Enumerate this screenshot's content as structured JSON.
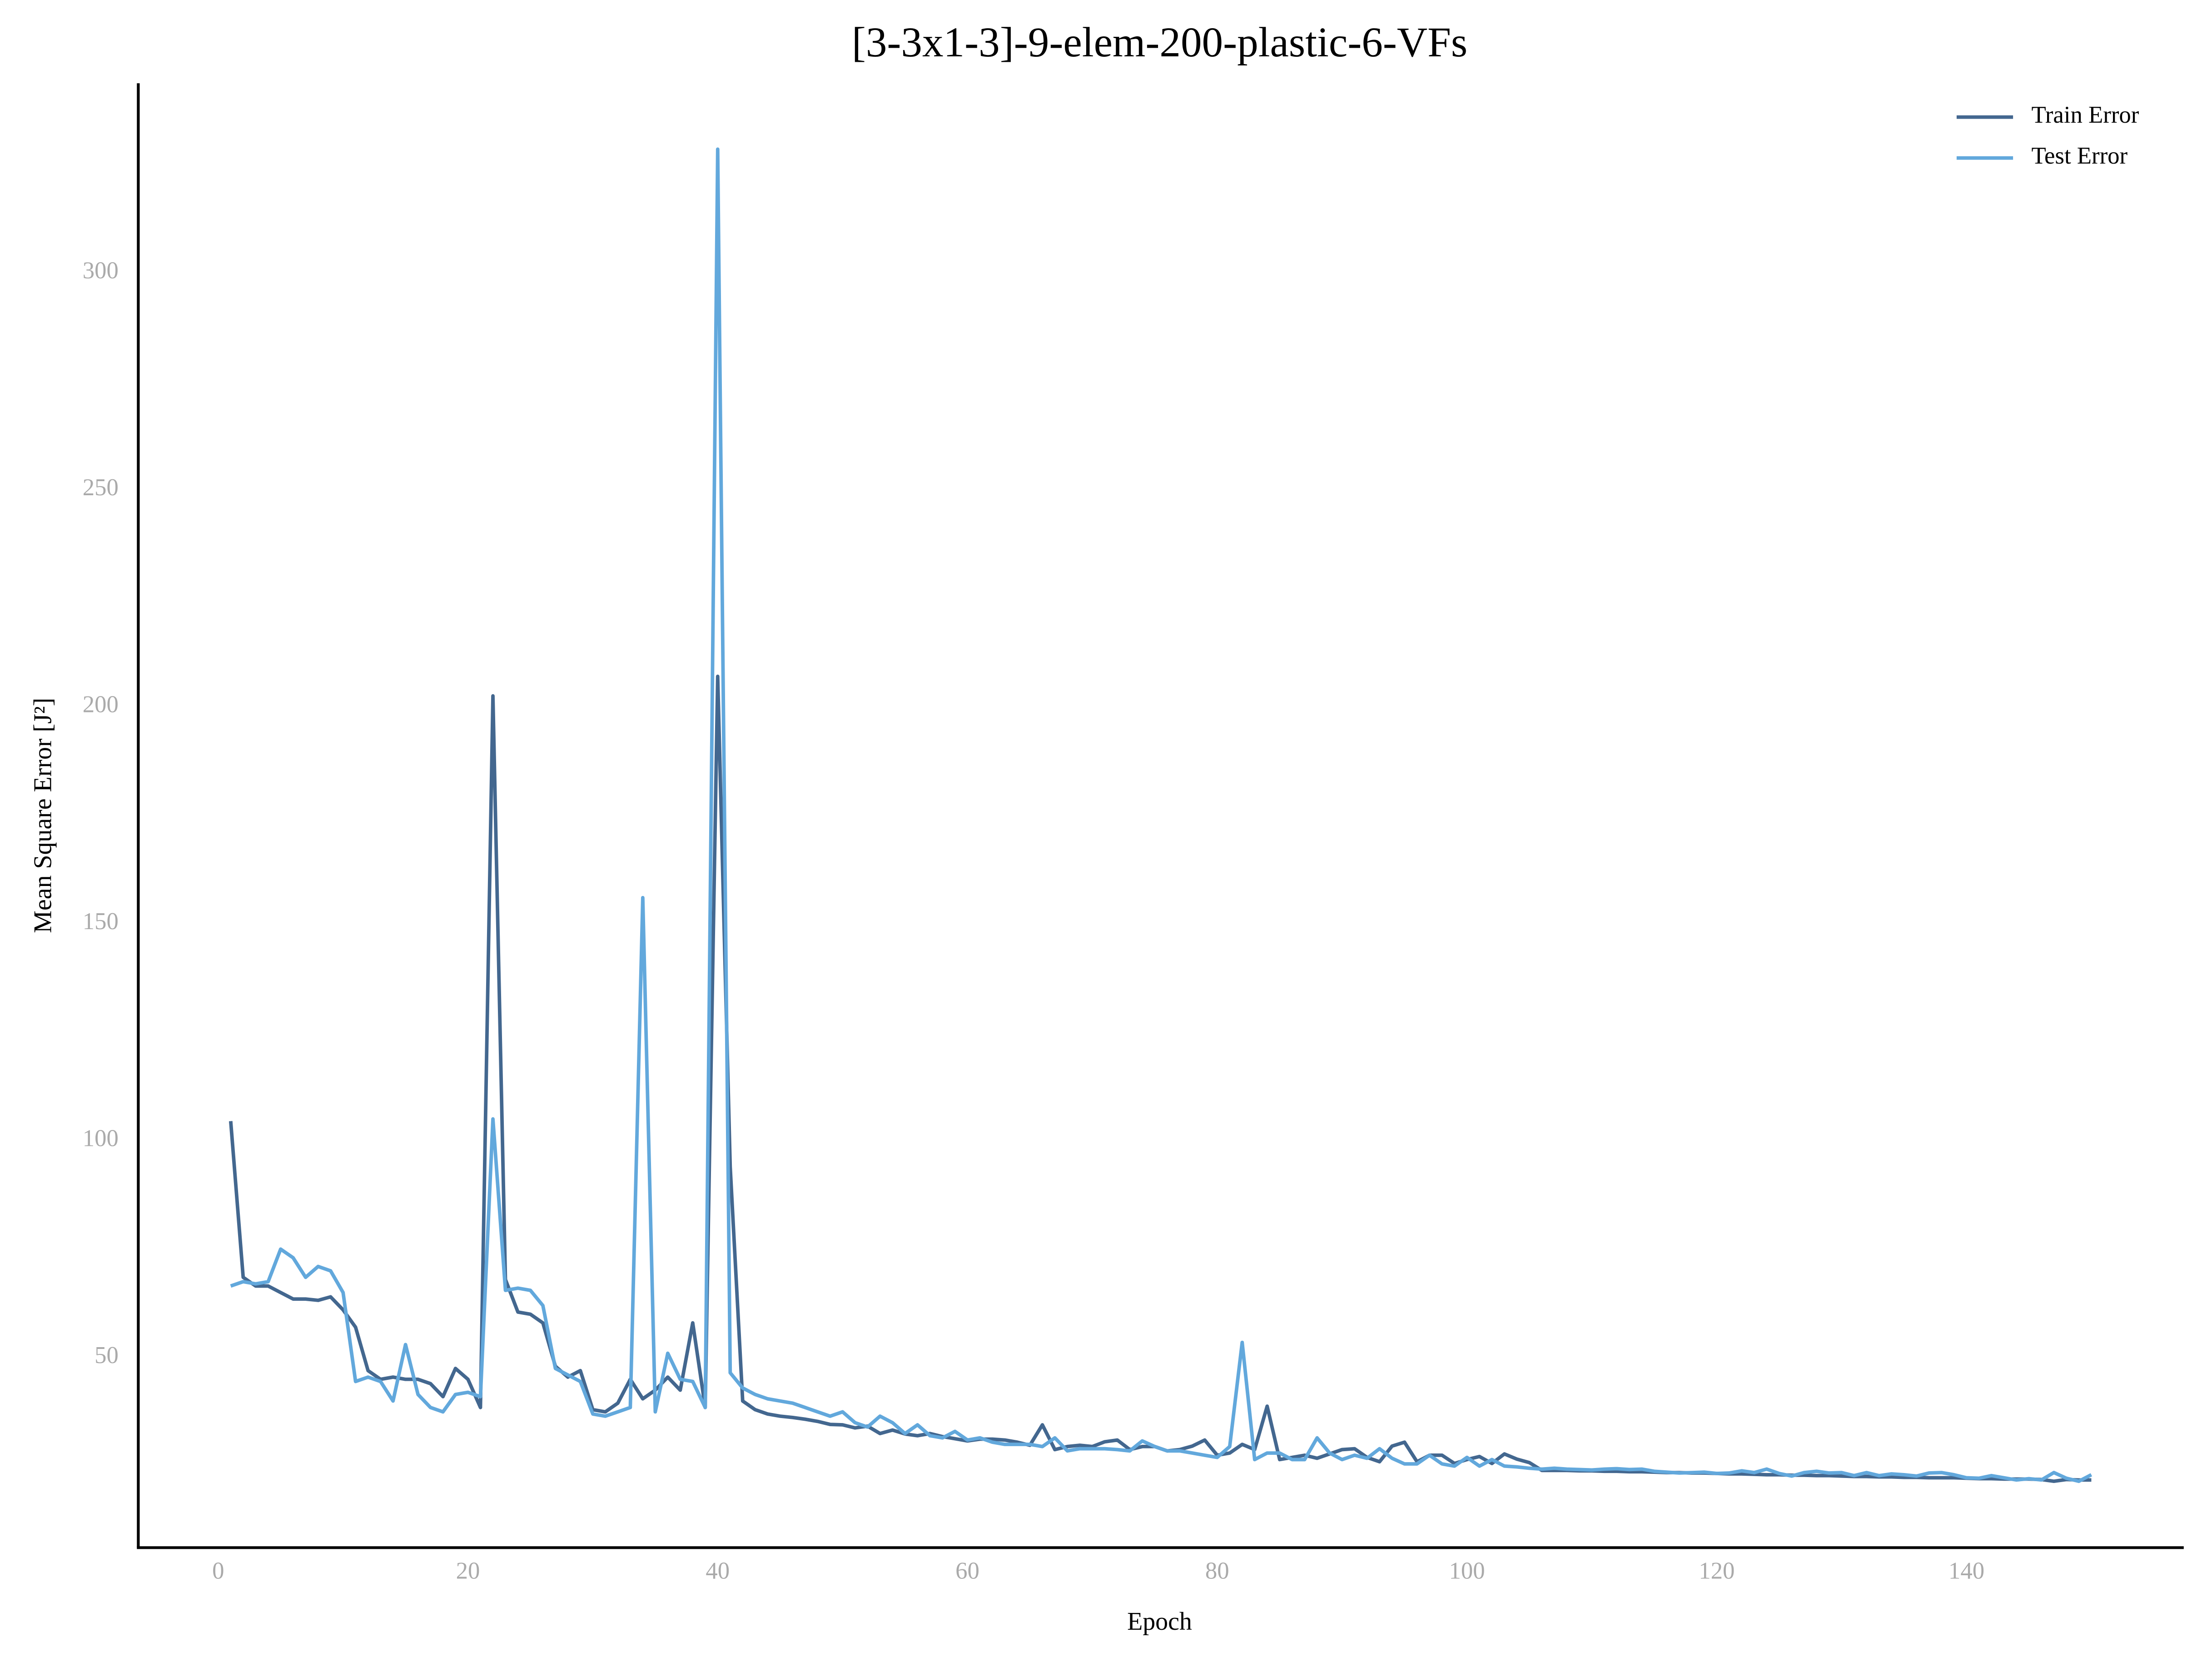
{
  "chart_data": {
    "type": "line",
    "title": "[3-3x1-3]-9-elem-200-plastic-6-VFs",
    "x_label": "Epoch",
    "y_label": "Mean Square Error [J²]",
    "x": [
      1,
      2,
      3,
      4,
      5,
      6,
      7,
      8,
      9,
      10,
      11,
      12,
      13,
      14,
      15,
      16,
      17,
      18,
      19,
      20,
      21,
      22,
      23,
      24,
      25,
      26,
      27,
      28,
      29,
      30,
      31,
      32,
      33,
      34,
      35,
      36,
      37,
      38,
      39,
      40,
      41,
      42,
      43,
      44,
      45,
      46,
      47,
      48,
      49,
      50,
      51,
      52,
      53,
      54,
      55,
      56,
      57,
      58,
      59,
      60,
      61,
      62,
      63,
      64,
      65,
      66,
      67,
      68,
      69,
      70,
      71,
      72,
      73,
      74,
      75,
      76,
      77,
      78,
      79,
      80,
      81,
      82,
      83,
      84,
      85,
      86,
      87,
      88,
      89,
      90,
      91,
      92,
      93,
      94,
      95,
      96,
      97,
      98,
      99,
      100,
      101,
      102,
      103,
      104,
      105,
      106,
      107,
      108,
      109,
      110,
      111,
      112,
      113,
      114,
      115,
      116,
      117,
      118,
      119,
      120,
      121,
      122,
      123,
      124,
      125,
      126,
      127,
      128,
      129,
      130,
      131,
      132,
      133,
      134,
      135,
      136,
      137,
      138,
      139,
      140,
      141,
      142,
      143,
      144,
      145,
      146,
      147,
      148,
      149,
      150
    ],
    "series": [
      {
        "name": "Train Error",
        "color": "#43678f",
        "values": [
          104.5,
          68.5,
          66.5,
          66.5,
          65,
          63.5,
          63.5,
          63.2,
          64,
          61,
          57,
          47,
          45,
          45.5,
          45,
          45,
          44,
          41,
          47.5,
          45,
          38.5,
          202.5,
          68,
          60.5,
          60,
          58,
          48,
          45.5,
          47,
          38,
          37.5,
          39.5,
          45,
          40.5,
          42.5,
          45.5,
          42.5,
          58,
          38.5,
          207,
          94,
          40,
          38,
          37,
          36.5,
          36.2,
          35.8,
          35.3,
          34.6,
          34.5,
          33.8,
          34.2,
          32.5,
          33.3,
          32.4,
          32,
          32.5,
          31.8,
          31.3,
          30.8,
          31.2,
          31.2,
          31,
          30.5,
          29.8,
          34.5,
          28.8,
          29.5,
          29.8,
          29.5,
          30.6,
          31,
          28.8,
          29.5,
          29.5,
          28.5,
          28.8,
          29.6,
          31,
          27.5,
          28,
          30,
          28.8,
          38.8,
          26.5,
          27,
          27.5,
          26.8,
          27.8,
          28.8,
          29,
          27,
          26,
          29.6,
          30.5,
          26,
          27.5,
          27.5,
          25.6,
          26.5,
          27.2,
          25.6,
          27.8,
          26.6,
          25.8,
          24,
          24,
          24,
          23.9,
          23.9,
          23.8,
          23.8,
          23.7,
          23.7,
          23.6,
          23.5,
          23.5,
          23.4,
          23.4,
          23.3,
          23.2,
          23.2,
          23.1,
          23,
          23,
          22.9,
          22.9,
          22.8,
          22.8,
          22.7,
          22.6,
          22.6,
          22.5,
          22.5,
          22.4,
          22.4,
          22.3,
          22.3,
          22.3,
          22.2,
          22.1,
          22.1,
          22,
          22,
          22,
          21.9,
          21.5,
          21.9,
          21.8,
          21.8
        ]
      },
      {
        "name": "Test Error",
        "color": "#62a8dc",
        "values": [
          66.5,
          67.5,
          67,
          67.5,
          75,
          73,
          68.5,
          71,
          70,
          65,
          44.5,
          45.5,
          44.5,
          40,
          53,
          41.5,
          38.5,
          37.5,
          41.5,
          42,
          41,
          105,
          65.5,
          66,
          65.5,
          62,
          47.5,
          46,
          44.5,
          37,
          36.5,
          37.5,
          38.5,
          156,
          37.5,
          51,
          45,
          44.5,
          38.5,
          328.5,
          46.5,
          43,
          41.5,
          40.5,
          40,
          39.5,
          38.5,
          37.5,
          36.5,
          37.5,
          35,
          34,
          36.5,
          35,
          32.5,
          34.5,
          32,
          31.5,
          33,
          31,
          31.5,
          30.5,
          30,
          30,
          30,
          29.5,
          31.5,
          28.5,
          29,
          29,
          29,
          28.8,
          28.5,
          30.8,
          29.5,
          28.5,
          28.5,
          28,
          27.5,
          27,
          29.5,
          53.5,
          26.5,
          28,
          28,
          26.5,
          26.5,
          31.5,
          28,
          26.5,
          27.5,
          26.8,
          29,
          26.8,
          25.5,
          25.5,
          27.5,
          25.5,
          25,
          27,
          25,
          26.5,
          25,
          24.8,
          24.5,
          24.3,
          24.5,
          24.3,
          24.2,
          24.1,
          24.3,
          24.4,
          24.2,
          24.3,
          23.8,
          23.6,
          23.4,
          23.5,
          23.6,
          23.3,
          23.4,
          23.9,
          23.5,
          24.3,
          23.3,
          22.7,
          23.5,
          23.8,
          23.4,
          23.5,
          22.8,
          23.5,
          22.8,
          23.2,
          23,
          22.7,
          23.4,
          23.5,
          23,
          22.3,
          22.2,
          22.8,
          22.3,
          21.8,
          22.1,
          21.8,
          23.5,
          22.2,
          21.5,
          23
        ]
      }
    ],
    "xlim": [
      -6.4,
      157.4
    ],
    "ylim": [
      6.2,
      343.7
    ],
    "xticks": [
      0,
      20,
      40,
      60,
      80,
      100,
      120,
      140
    ],
    "yticks": [
      50,
      100,
      150,
      200,
      250,
      300
    ],
    "grid": false,
    "legend": "upper right"
  }
}
